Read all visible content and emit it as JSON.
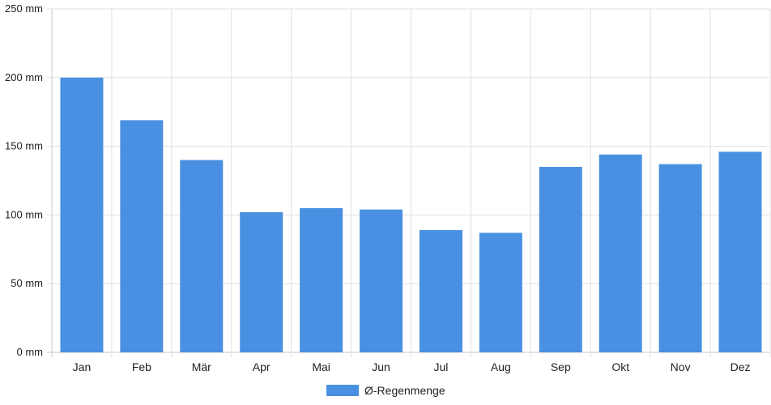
{
  "chart_data": {
    "type": "bar",
    "categories": [
      "Jan",
      "Feb",
      "Mär",
      "Apr",
      "Mai",
      "Jun",
      "Jul",
      "Aug",
      "Sep",
      "Okt",
      "Nov",
      "Dez"
    ],
    "series": [
      {
        "name": "Ø-Regenmenge",
        "values": [
          200,
          169,
          140,
          102,
          105,
          104,
          89,
          87,
          135,
          144,
          137,
          146
        ]
      }
    ],
    "yticks": [
      "0 mm",
      "50 mm",
      "100 mm",
      "150 mm",
      "200 mm",
      "250 mm"
    ],
    "ylim": [
      0,
      250
    ],
    "grid": true,
    "legend_position": "bottom",
    "colors": {
      "bar": "#4a90e2",
      "grid": "#e0e0e0",
      "axis": "#c8c8c8"
    },
    "title": "",
    "xlabel": "",
    "ylabel": ""
  }
}
